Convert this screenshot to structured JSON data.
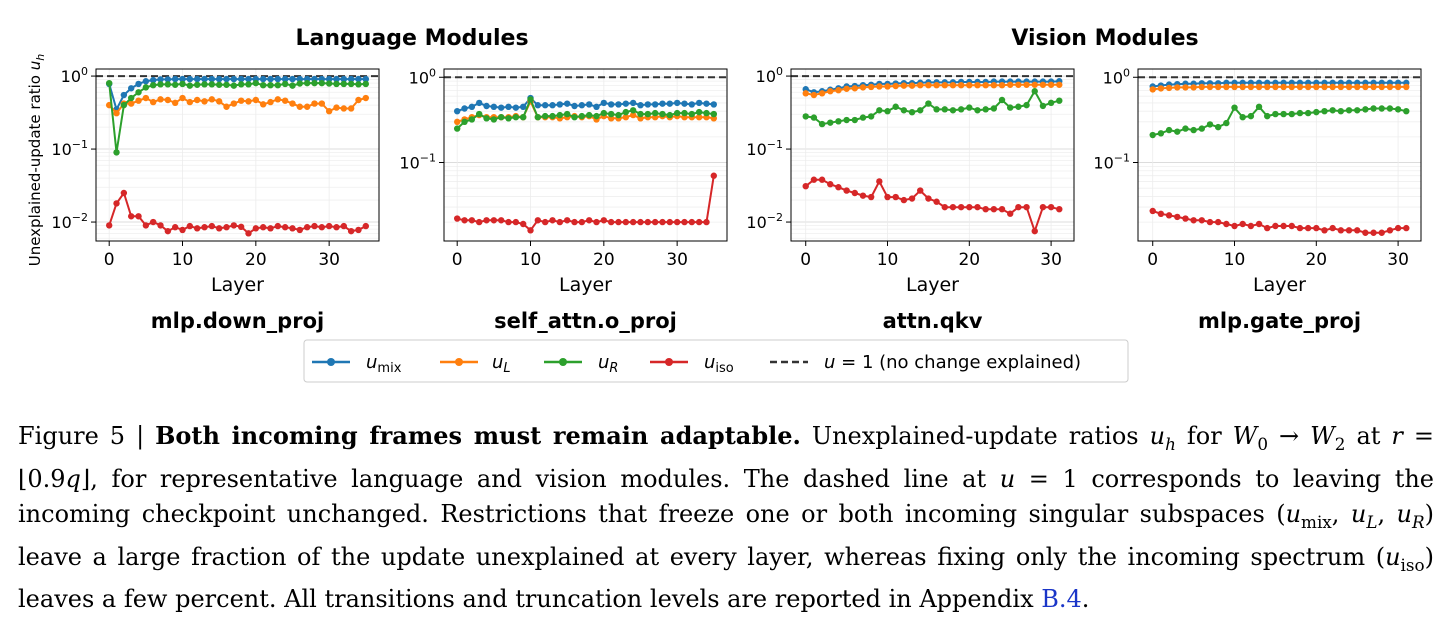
{
  "figure": {
    "group_titles": [
      "Language Modules",
      "Vision Modules"
    ],
    "ylabel": "Unexplained-update ratio u_h",
    "xlabel": "Layer",
    "legend": [
      {
        "key": "mix",
        "label": "u_mix",
        "color": "#1f77b4"
      },
      {
        "key": "L",
        "label": "u_L",
        "color": "#ff7f0e"
      },
      {
        "key": "R",
        "label": "u_R",
        "color": "#2ca02c"
      },
      {
        "key": "iso",
        "label": "u_iso",
        "color": "#d62728"
      },
      {
        "key": "ref",
        "label": "u = 1 (no change explained)",
        "color": "#333333"
      }
    ]
  },
  "chart_data": [
    {
      "type": "line",
      "title": "mlp.down_proj",
      "xlabel": "Layer",
      "ylabel": "Unexplained-update ratio u_h",
      "yscale": "log",
      "ylim": [
        0.0055,
        1.25
      ],
      "xticks": [
        0,
        10,
        20,
        30
      ],
      "yticks": [
        "10^0",
        "10^-1",
        "10^-2"
      ],
      "reference_line": 1,
      "x": [
        0,
        1,
        2,
        3,
        4,
        5,
        6,
        7,
        8,
        9,
        10,
        11,
        12,
        13,
        14,
        15,
        16,
        17,
        18,
        19,
        20,
        21,
        22,
        23,
        24,
        25,
        26,
        27,
        28,
        29,
        30,
        31,
        32,
        33,
        34,
        35
      ],
      "series": [
        {
          "name": "u_mix",
          "values": [
            0.78,
            0.35,
            0.55,
            0.68,
            0.78,
            0.85,
            0.88,
            0.9,
            0.9,
            0.91,
            0.91,
            0.91,
            0.91,
            0.91,
            0.91,
            0.91,
            0.91,
            0.91,
            0.91,
            0.91,
            0.91,
            0.91,
            0.91,
            0.91,
            0.91,
            0.91,
            0.91,
            0.91,
            0.91,
            0.91,
            0.91,
            0.91,
            0.91,
            0.91,
            0.91,
            0.91
          ]
        },
        {
          "name": "u_L",
          "values": [
            0.4,
            0.31,
            0.42,
            0.42,
            0.46,
            0.5,
            0.44,
            0.48,
            0.47,
            0.43,
            0.5,
            0.44,
            0.47,
            0.45,
            0.48,
            0.45,
            0.38,
            0.42,
            0.46,
            0.45,
            0.47,
            0.41,
            0.44,
            0.48,
            0.46,
            0.42,
            0.38,
            0.38,
            0.42,
            0.42,
            0.33,
            0.37,
            0.36,
            0.36,
            0.47,
            0.5
          ]
        },
        {
          "name": "u_R",
          "values": [
            0.8,
            0.09,
            0.4,
            0.5,
            0.6,
            0.7,
            0.75,
            0.77,
            0.77,
            0.76,
            0.78,
            0.74,
            0.76,
            0.77,
            0.77,
            0.76,
            0.76,
            0.74,
            0.77,
            0.77,
            0.8,
            0.75,
            0.75,
            0.75,
            0.78,
            0.74,
            0.79,
            0.8,
            0.8,
            0.8,
            0.79,
            0.78,
            0.78,
            0.78,
            0.77,
            0.78
          ]
        },
        {
          "name": "u_iso",
          "values": [
            0.009,
            0.018,
            0.025,
            0.012,
            0.012,
            0.009,
            0.01,
            0.009,
            0.0075,
            0.0085,
            0.0078,
            0.0088,
            0.0082,
            0.0085,
            0.0088,
            0.0082,
            0.0085,
            0.009,
            0.0086,
            0.007,
            0.0082,
            0.0085,
            0.0082,
            0.0088,
            0.0085,
            0.0082,
            0.0078,
            0.0085,
            0.0088,
            0.0085,
            0.0088,
            0.0085,
            0.0088,
            0.0075,
            0.0078,
            0.0088
          ]
        }
      ]
    },
    {
      "type": "line",
      "title": "self_attn.o_proj",
      "xlabel": "Layer",
      "yscale": "log",
      "ylim": [
        0.012,
        1.25
      ],
      "xticks": [
        0,
        10,
        20,
        30
      ],
      "yticks": [
        "10^0",
        "10^-1"
      ],
      "reference_line": 1,
      "x": [
        0,
        1,
        2,
        3,
        4,
        5,
        6,
        7,
        8,
        9,
        10,
        11,
        12,
        13,
        14,
        15,
        16,
        17,
        18,
        19,
        20,
        21,
        22,
        23,
        24,
        25,
        26,
        27,
        28,
        29,
        30,
        31,
        32,
        33,
        34,
        35
      ],
      "series": [
        {
          "name": "u_mix",
          "values": [
            0.4,
            0.43,
            0.45,
            0.5,
            0.46,
            0.45,
            0.44,
            0.45,
            0.44,
            0.45,
            0.57,
            0.47,
            0.47,
            0.47,
            0.48,
            0.49,
            0.46,
            0.47,
            0.48,
            0.45,
            0.5,
            0.48,
            0.48,
            0.49,
            0.5,
            0.47,
            0.48,
            0.48,
            0.49,
            0.49,
            0.5,
            0.49,
            0.48,
            0.5,
            0.49,
            0.48
          ]
        },
        {
          "name": "u_L",
          "values": [
            0.3,
            0.32,
            0.34,
            0.36,
            0.34,
            0.34,
            0.34,
            0.34,
            0.35,
            0.34,
            0.52,
            0.34,
            0.34,
            0.34,
            0.33,
            0.34,
            0.35,
            0.34,
            0.35,
            0.32,
            0.35,
            0.33,
            0.33,
            0.34,
            0.36,
            0.33,
            0.34,
            0.34,
            0.35,
            0.34,
            0.35,
            0.34,
            0.34,
            0.34,
            0.34,
            0.33
          ]
        },
        {
          "name": "u_R",
          "values": [
            0.25,
            0.3,
            0.32,
            0.37,
            0.33,
            0.32,
            0.34,
            0.33,
            0.34,
            0.34,
            0.55,
            0.34,
            0.35,
            0.35,
            0.36,
            0.37,
            0.34,
            0.35,
            0.36,
            0.35,
            0.38,
            0.37,
            0.36,
            0.39,
            0.41,
            0.37,
            0.37,
            0.38,
            0.37,
            0.36,
            0.38,
            0.38,
            0.37,
            0.39,
            0.38,
            0.37
          ]
        },
        {
          "name": "u_iso",
          "values": [
            0.022,
            0.021,
            0.021,
            0.02,
            0.021,
            0.021,
            0.021,
            0.02,
            0.02,
            0.019,
            0.016,
            0.021,
            0.02,
            0.021,
            0.02,
            0.021,
            0.02,
            0.02,
            0.021,
            0.02,
            0.021,
            0.02,
            0.02,
            0.02,
            0.02,
            0.02,
            0.02,
            0.02,
            0.02,
            0.02,
            0.02,
            0.02,
            0.02,
            0.02,
            0.02,
            0.07
          ]
        }
      ]
    },
    {
      "type": "line",
      "title": "attn.qkv",
      "xlabel": "Layer",
      "yscale": "log",
      "ylim": [
        0.0055,
        1.25
      ],
      "xticks": [
        0,
        10,
        20,
        30
      ],
      "yticks": [
        "10^0",
        "10^-1",
        "10^-2"
      ],
      "reference_line": 1,
      "x": [
        0,
        1,
        2,
        3,
        4,
        5,
        6,
        7,
        8,
        9,
        10,
        11,
        12,
        13,
        14,
        15,
        16,
        17,
        18,
        19,
        20,
        21,
        22,
        23,
        24,
        25,
        26,
        27,
        28,
        29,
        30,
        31
      ],
      "series": [
        {
          "name": "u_mix",
          "values": [
            0.66,
            0.6,
            0.62,
            0.65,
            0.68,
            0.72,
            0.73,
            0.75,
            0.76,
            0.78,
            0.78,
            0.79,
            0.8,
            0.8,
            0.81,
            0.82,
            0.82,
            0.82,
            0.82,
            0.83,
            0.83,
            0.83,
            0.83,
            0.84,
            0.84,
            0.84,
            0.84,
            0.84,
            0.84,
            0.84,
            0.84,
            0.85
          ]
        },
        {
          "name": "u_L",
          "values": [
            0.58,
            0.55,
            0.58,
            0.62,
            0.64,
            0.67,
            0.68,
            0.7,
            0.71,
            0.72,
            0.72,
            0.73,
            0.74,
            0.74,
            0.75,
            0.75,
            0.75,
            0.75,
            0.75,
            0.75,
            0.75,
            0.75,
            0.75,
            0.75,
            0.75,
            0.76,
            0.76,
            0.76,
            0.76,
            0.76,
            0.76,
            0.76
          ]
        },
        {
          "name": "u_R",
          "values": [
            0.28,
            0.27,
            0.22,
            0.23,
            0.24,
            0.25,
            0.25,
            0.27,
            0.28,
            0.34,
            0.33,
            0.38,
            0.34,
            0.32,
            0.34,
            0.42,
            0.35,
            0.35,
            0.34,
            0.35,
            0.37,
            0.34,
            0.35,
            0.36,
            0.47,
            0.37,
            0.38,
            0.4,
            0.62,
            0.39,
            0.43,
            0.46
          ]
        },
        {
          "name": "u_iso",
          "values": [
            0.031,
            0.038,
            0.038,
            0.033,
            0.03,
            0.027,
            0.025,
            0.023,
            0.022,
            0.036,
            0.022,
            0.022,
            0.02,
            0.021,
            0.027,
            0.021,
            0.019,
            0.016,
            0.016,
            0.016,
            0.016,
            0.016,
            0.015,
            0.015,
            0.015,
            0.013,
            0.016,
            0.016,
            0.0075,
            0.016,
            0.016,
            0.015
          ]
        }
      ]
    },
    {
      "type": "line",
      "title": "mlp.gate_proj",
      "xlabel": "Layer",
      "yscale": "log",
      "ylim": [
        0.012,
        1.25
      ],
      "xticks": [
        0,
        10,
        20,
        30
      ],
      "yticks": [
        "10^0",
        "10^-1"
      ],
      "reference_line": 1,
      "x": [
        0,
        1,
        2,
        3,
        4,
        5,
        6,
        7,
        8,
        9,
        10,
        11,
        12,
        13,
        14,
        15,
        16,
        17,
        18,
        19,
        20,
        21,
        22,
        23,
        24,
        25,
        26,
        27,
        28,
        29,
        30,
        31
      ],
      "series": [
        {
          "name": "u_mix",
          "values": [
            0.78,
            0.8,
            0.82,
            0.83,
            0.84,
            0.84,
            0.85,
            0.85,
            0.85,
            0.86,
            0.86,
            0.86,
            0.86,
            0.86,
            0.86,
            0.86,
            0.86,
            0.86,
            0.86,
            0.86,
            0.86,
            0.86,
            0.86,
            0.86,
            0.86,
            0.86,
            0.86,
            0.86,
            0.86,
            0.86,
            0.86,
            0.86
          ]
        },
        {
          "name": "u_L",
          "values": [
            0.72,
            0.74,
            0.75,
            0.76,
            0.76,
            0.76,
            0.77,
            0.77,
            0.77,
            0.77,
            0.77,
            0.77,
            0.77,
            0.77,
            0.77,
            0.77,
            0.77,
            0.77,
            0.77,
            0.77,
            0.77,
            0.77,
            0.77,
            0.77,
            0.77,
            0.77,
            0.77,
            0.77,
            0.77,
            0.77,
            0.77,
            0.77
          ]
        },
        {
          "name": "u_R",
          "values": [
            0.21,
            0.22,
            0.24,
            0.23,
            0.25,
            0.24,
            0.25,
            0.28,
            0.26,
            0.29,
            0.44,
            0.34,
            0.35,
            0.45,
            0.35,
            0.37,
            0.37,
            0.37,
            0.38,
            0.38,
            0.39,
            0.4,
            0.41,
            0.4,
            0.41,
            0.41,
            0.42,
            0.43,
            0.43,
            0.43,
            0.42,
            0.4
          ]
        },
        {
          "name": "u_iso",
          "values": [
            0.027,
            0.025,
            0.024,
            0.023,
            0.022,
            0.021,
            0.021,
            0.02,
            0.02,
            0.019,
            0.018,
            0.019,
            0.018,
            0.019,
            0.017,
            0.018,
            0.018,
            0.018,
            0.017,
            0.017,
            0.017,
            0.016,
            0.017,
            0.016,
            0.016,
            0.016,
            0.015,
            0.015,
            0.015,
            0.016,
            0.017,
            0.017
          ]
        }
      ]
    }
  ],
  "caption": {
    "label": "Figure 5 | ",
    "bold": "Both incoming frames must remain adaptable.",
    "text_1": " Unexplained-update ratios ",
    "text_2": " for ",
    "text_3": " at ",
    "text_4": ", for representative language and vision modules. The dashed line at ",
    "text_5": " corresponds to leaving the incoming checkpoint unchanged. Restrictions that freeze one or both incoming singular subspaces ",
    "text_6": " leave a large fraction of the update unexplained at every layer, whereas fixing only the incoming spectrum ",
    "text_7": " leaves a few percent. All transitions and truncation levels are reported in Appendix ",
    "ref": "B.4",
    "end": "."
  }
}
